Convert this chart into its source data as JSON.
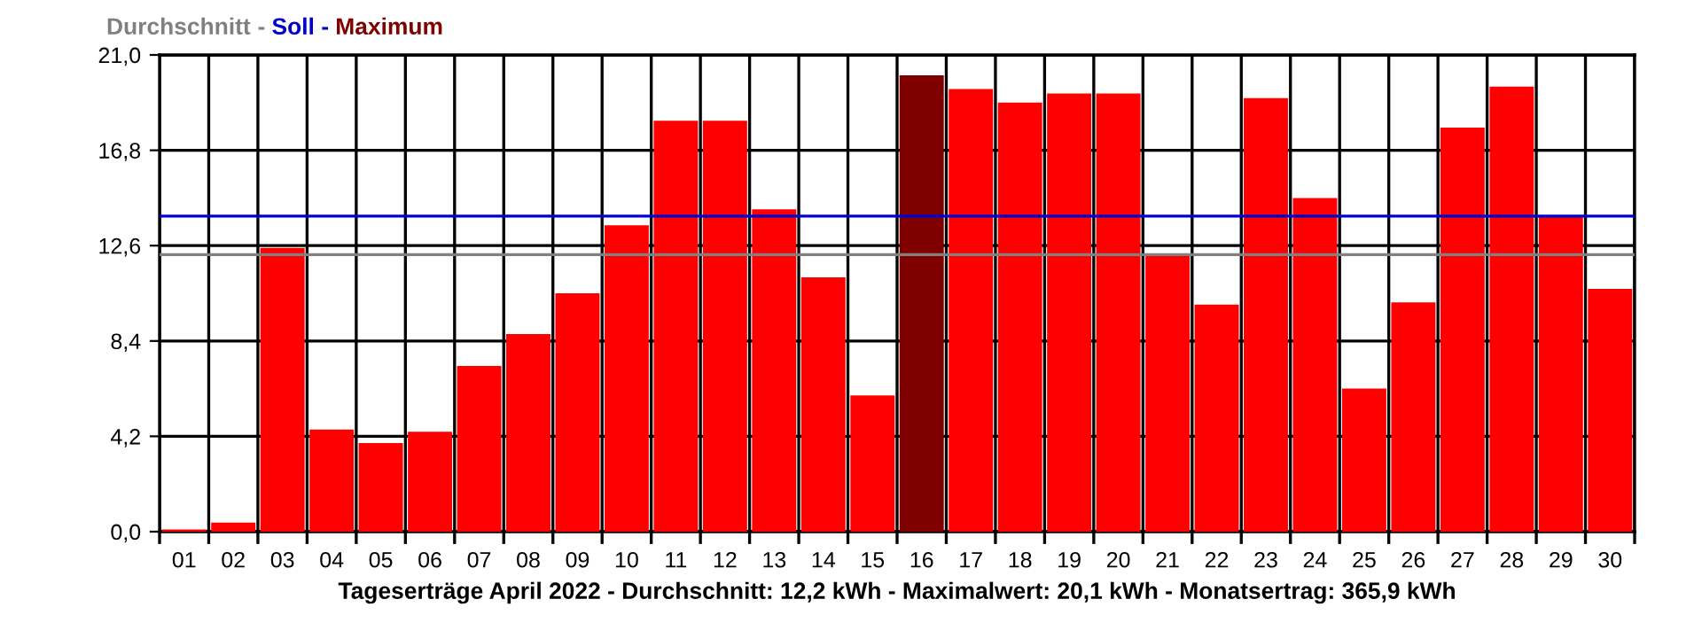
{
  "chart_data": {
    "type": "bar",
    "title": "Durchschnitt - Soll - Maximum",
    "xlabel": "Tageserträge April 2022 - Durchschnitt: 12,2 kWh - Maximalwert: 20,1 kWh - Monatsertrag: 365,9 kWh",
    "categories": [
      "01",
      "02",
      "03",
      "04",
      "05",
      "06",
      "07",
      "08",
      "09",
      "10",
      "11",
      "12",
      "13",
      "14",
      "15",
      "16",
      "17",
      "18",
      "19",
      "20",
      "21",
      "22",
      "23",
      "24",
      "25",
      "26",
      "27",
      "28",
      "29",
      "30"
    ],
    "values": [
      0.1,
      0.4,
      12.5,
      4.5,
      3.9,
      4.4,
      7.3,
      8.7,
      10.5,
      13.5,
      18.1,
      18.1,
      14.2,
      11.2,
      6.0,
      20.1,
      19.5,
      18.9,
      19.3,
      19.3,
      12.2,
      10.0,
      19.1,
      14.7,
      6.3,
      10.1,
      17.8,
      19.6,
      13.9,
      10.7
    ],
    "colors": [
      "#ff0000",
      "#ff0000",
      "#ff0000",
      "#ff0000",
      "#ff0000",
      "#ff0000",
      "#ff0000",
      "#ff0000",
      "#ff0000",
      "#ff0000",
      "#ff0000",
      "#ff0000",
      "#ff0000",
      "#ff0000",
      "#ff0000",
      "#800000",
      "#ff0000",
      "#ff0000",
      "#ff0000",
      "#ff0000",
      "#ff0000",
      "#ff0000",
      "#ff0000",
      "#ff0000",
      "#ff0000",
      "#ff0000",
      "#ff0000",
      "#ff0000",
      "#ff0000",
      "#ff0000"
    ],
    "ylim": [
      0,
      21
    ],
    "yticks": [
      {
        "value": 0,
        "label": "0,0"
      },
      {
        "value": 4.2,
        "label": "4,2"
      },
      {
        "value": 8.4,
        "label": "8,4"
      },
      {
        "value": 12.6,
        "label": "12,6"
      },
      {
        "value": 16.8,
        "label": "16,8"
      },
      {
        "value": 21,
        "label": "21,0"
      }
    ],
    "ref_lines": [
      {
        "axis": "y",
        "value": 12.2,
        "color": "#808080"
      },
      {
        "axis": "y",
        "value": 13.9,
        "color": "#0000cc"
      }
    ],
    "grid": true
  }
}
